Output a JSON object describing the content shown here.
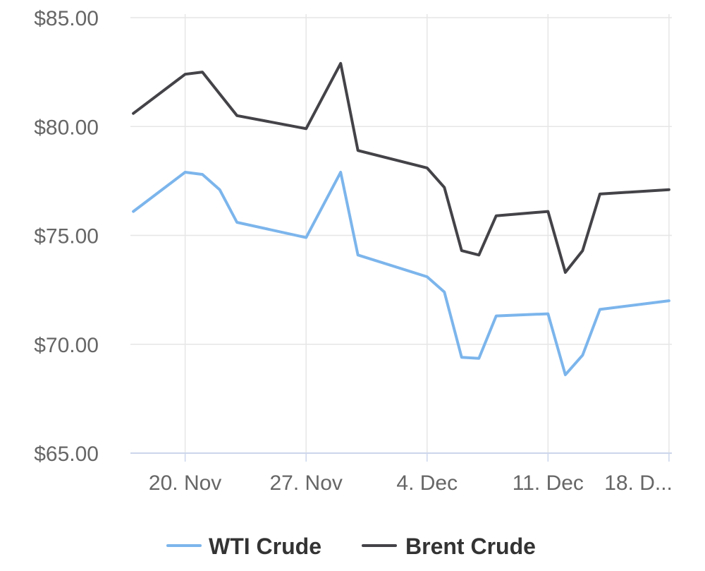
{
  "chart_data": {
    "type": "line",
    "title": "",
    "xlabel": "",
    "ylabel": "",
    "ylim": [
      65,
      85
    ],
    "yticks": [
      "$65.00",
      "$70.00",
      "$75.00",
      "$80.00",
      "$85.00"
    ],
    "ytick_values": [
      65,
      70,
      75,
      80,
      85
    ],
    "xticks": [
      {
        "label": "20. Nov",
        "date": "2023-11-20"
      },
      {
        "label": "27. Nov",
        "date": "2023-11-27"
      },
      {
        "label": "4. Dec",
        "date": "2023-12-04"
      },
      {
        "label": "11. Dec",
        "date": "2023-12-11"
      },
      {
        "label": "18. D...",
        "date": "2023-12-18"
      }
    ],
    "xrange": [
      "2023-11-16T20:00",
      "2023-12-18T04:00"
    ],
    "grid": true,
    "legend_position": "bottom",
    "series": [
      {
        "name": "WTI Crude",
        "color": "#7cb5ec",
        "points": [
          {
            "date": "2023-11-17",
            "value": 76.1
          },
          {
            "date": "2023-11-20",
            "value": 77.9
          },
          {
            "date": "2023-11-21",
            "value": 77.8
          },
          {
            "date": "2023-11-22",
            "value": 77.1
          },
          {
            "date": "2023-11-23",
            "value": 75.6
          },
          {
            "date": "2023-11-27",
            "value": 74.9
          },
          {
            "date": "2023-11-29",
            "value": 77.9
          },
          {
            "date": "2023-11-30",
            "value": 74.1
          },
          {
            "date": "2023-12-04",
            "value": 73.1
          },
          {
            "date": "2023-12-05",
            "value": 72.4
          },
          {
            "date": "2023-12-06",
            "value": 69.4
          },
          {
            "date": "2023-12-07",
            "value": 69.35
          },
          {
            "date": "2023-12-08",
            "value": 71.3
          },
          {
            "date": "2023-12-11",
            "value": 71.4
          },
          {
            "date": "2023-12-12",
            "value": 68.6
          },
          {
            "date": "2023-12-13",
            "value": 69.5
          },
          {
            "date": "2023-12-14",
            "value": 71.6
          },
          {
            "date": "2023-12-18",
            "value": 72.0
          }
        ]
      },
      {
        "name": "Brent Crude",
        "color": "#434348",
        "points": [
          {
            "date": "2023-11-17",
            "value": 80.6
          },
          {
            "date": "2023-11-20",
            "value": 82.4
          },
          {
            "date": "2023-11-21",
            "value": 82.5
          },
          {
            "date": "2023-11-22",
            "value": 81.5
          },
          {
            "date": "2023-11-23",
            "value": 80.5
          },
          {
            "date": "2023-11-27",
            "value": 79.9
          },
          {
            "date": "2023-11-29",
            "value": 82.9
          },
          {
            "date": "2023-11-30",
            "value": 78.9
          },
          {
            "date": "2023-12-04",
            "value": 78.1
          },
          {
            "date": "2023-12-05",
            "value": 77.2
          },
          {
            "date": "2023-12-06",
            "value": 74.3
          },
          {
            "date": "2023-12-07",
            "value": 74.1
          },
          {
            "date": "2023-12-08",
            "value": 75.9
          },
          {
            "date": "2023-12-11",
            "value": 76.1
          },
          {
            "date": "2023-12-12",
            "value": 73.3
          },
          {
            "date": "2023-12-13",
            "value": 74.3
          },
          {
            "date": "2023-12-14",
            "value": 76.9
          },
          {
            "date": "2023-12-18",
            "value": 77.1
          }
        ]
      }
    ]
  }
}
